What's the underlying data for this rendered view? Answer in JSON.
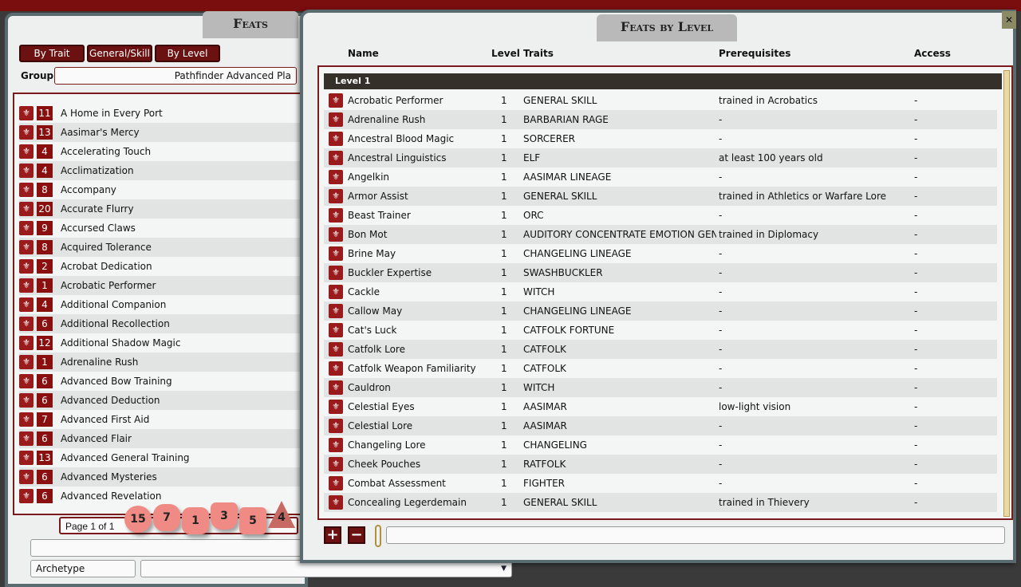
{
  "left_panel": {
    "title": "Feats",
    "buttons": [
      "By Trait",
      "General/Skill",
      "By Level"
    ],
    "group_label": "Group",
    "group_value": "Pathfinder Advanced Pla",
    "items": [
      {
        "level": "11",
        "name": "A Home in Every Port"
      },
      {
        "level": "13",
        "name": "Aasimar's Mercy"
      },
      {
        "level": "4",
        "name": "Accelerating Touch"
      },
      {
        "level": "4",
        "name": "Acclimatization"
      },
      {
        "level": "8",
        "name": "Accompany"
      },
      {
        "level": "20",
        "name": "Accurate Flurry"
      },
      {
        "level": "9",
        "name": "Accursed Claws"
      },
      {
        "level": "8",
        "name": "Acquired Tolerance"
      },
      {
        "level": "2",
        "name": "Acrobat Dedication"
      },
      {
        "level": "1",
        "name": "Acrobatic Performer"
      },
      {
        "level": "4",
        "name": "Additional Companion"
      },
      {
        "level": "6",
        "name": "Additional Recollection"
      },
      {
        "level": "12",
        "name": "Additional Shadow Magic"
      },
      {
        "level": "1",
        "name": "Adrenaline Rush"
      },
      {
        "level": "6",
        "name": "Advanced Bow Training"
      },
      {
        "level": "6",
        "name": "Advanced Deduction"
      },
      {
        "level": "7",
        "name": "Advanced First Aid"
      },
      {
        "level": "6",
        "name": "Advanced Flair"
      },
      {
        "level": "13",
        "name": "Advanced General Training"
      },
      {
        "level": "6",
        "name": "Advanced Mysteries"
      },
      {
        "level": "6",
        "name": "Advanced Revelation"
      }
    ],
    "page_text": "Page 1 of 1",
    "filter_value": "",
    "archetype_label": "Archetype",
    "archetype_value": ""
  },
  "dice": [
    "15",
    "7",
    "1",
    "3",
    "5",
    "4"
  ],
  "right_panel": {
    "title": "Feats by Level",
    "columns": [
      "Name",
      "Level",
      "Traits",
      "Prerequisites",
      "Access"
    ],
    "group_header": "Level 1",
    "rows": [
      {
        "name": "Acrobatic Performer",
        "level": "1",
        "traits": "GENERAL SKILL",
        "prereq": "trained in Acrobatics",
        "access": "-"
      },
      {
        "name": "Adrenaline Rush",
        "level": "1",
        "traits": "BARBARIAN RAGE",
        "prereq": "-",
        "access": "-"
      },
      {
        "name": "Ancestral Blood Magic",
        "level": "1",
        "traits": "SORCERER",
        "prereq": "-",
        "access": "-"
      },
      {
        "name": "Ancestral Linguistics",
        "level": "1",
        "traits": "ELF",
        "prereq": "at least 100 years old",
        "access": "-"
      },
      {
        "name": "Angelkin",
        "level": "1",
        "traits": "AASIMAR LINEAGE",
        "prereq": "-",
        "access": "-"
      },
      {
        "name": "Armor Assist",
        "level": "1",
        "traits": "GENERAL SKILL",
        "prereq": "trained in Athletics or Warfare Lore",
        "access": "-"
      },
      {
        "name": "Beast Trainer",
        "level": "1",
        "traits": "ORC",
        "prereq": "-",
        "access": "-"
      },
      {
        "name": "Bon Mot",
        "level": "1",
        "traits": "AUDITORY CONCENTRATE EMOTION GENERAL",
        "prereq": "trained in Diplomacy",
        "access": "-"
      },
      {
        "name": "Brine May",
        "level": "1",
        "traits": "CHANGELING LINEAGE",
        "prereq": "-",
        "access": "-"
      },
      {
        "name": "Buckler Expertise",
        "level": "1",
        "traits": "SWASHBUCKLER",
        "prereq": "-",
        "access": "-"
      },
      {
        "name": "Cackle",
        "level": "1",
        "traits": "WITCH",
        "prereq": "-",
        "access": "-"
      },
      {
        "name": "Callow May",
        "level": "1",
        "traits": "CHANGELING LINEAGE",
        "prereq": "-",
        "access": "-"
      },
      {
        "name": "Cat's Luck",
        "level": "1",
        "traits": "CATFOLK FORTUNE",
        "prereq": "-",
        "access": "-"
      },
      {
        "name": "Catfolk Lore",
        "level": "1",
        "traits": "CATFOLK",
        "prereq": "-",
        "access": "-"
      },
      {
        "name": "Catfolk Weapon Familiarity",
        "level": "1",
        "traits": "CATFOLK",
        "prereq": "-",
        "access": "-"
      },
      {
        "name": "Cauldron",
        "level": "1",
        "traits": "WITCH",
        "prereq": "-",
        "access": "-"
      },
      {
        "name": "Celestial Eyes",
        "level": "1",
        "traits": "AASIMAR",
        "prereq": "low-light vision",
        "access": "-"
      },
      {
        "name": "Celestial Lore",
        "level": "1",
        "traits": "AASIMAR",
        "prereq": "-",
        "access": "-"
      },
      {
        "name": "Changeling Lore",
        "level": "1",
        "traits": "CHANGELING",
        "prereq": "-",
        "access": "-"
      },
      {
        "name": "Cheek Pouches",
        "level": "1",
        "traits": "RATFOLK",
        "prereq": "-",
        "access": "-"
      },
      {
        "name": "Combat Assessment",
        "level": "1",
        "traits": "FIGHTER",
        "prereq": "-",
        "access": "-"
      },
      {
        "name": "Concealing Legerdemain",
        "level": "1",
        "traits": "GENERAL SKILL",
        "prereq": "trained in Thievery",
        "access": "-"
      }
    ],
    "add_icon": "plus-icon",
    "remove_icon": "minus-icon",
    "close_icon": "close-icon",
    "filter_value": ""
  },
  "colors": {
    "accent": "#6b1111",
    "header_bar": "#35302a"
  }
}
